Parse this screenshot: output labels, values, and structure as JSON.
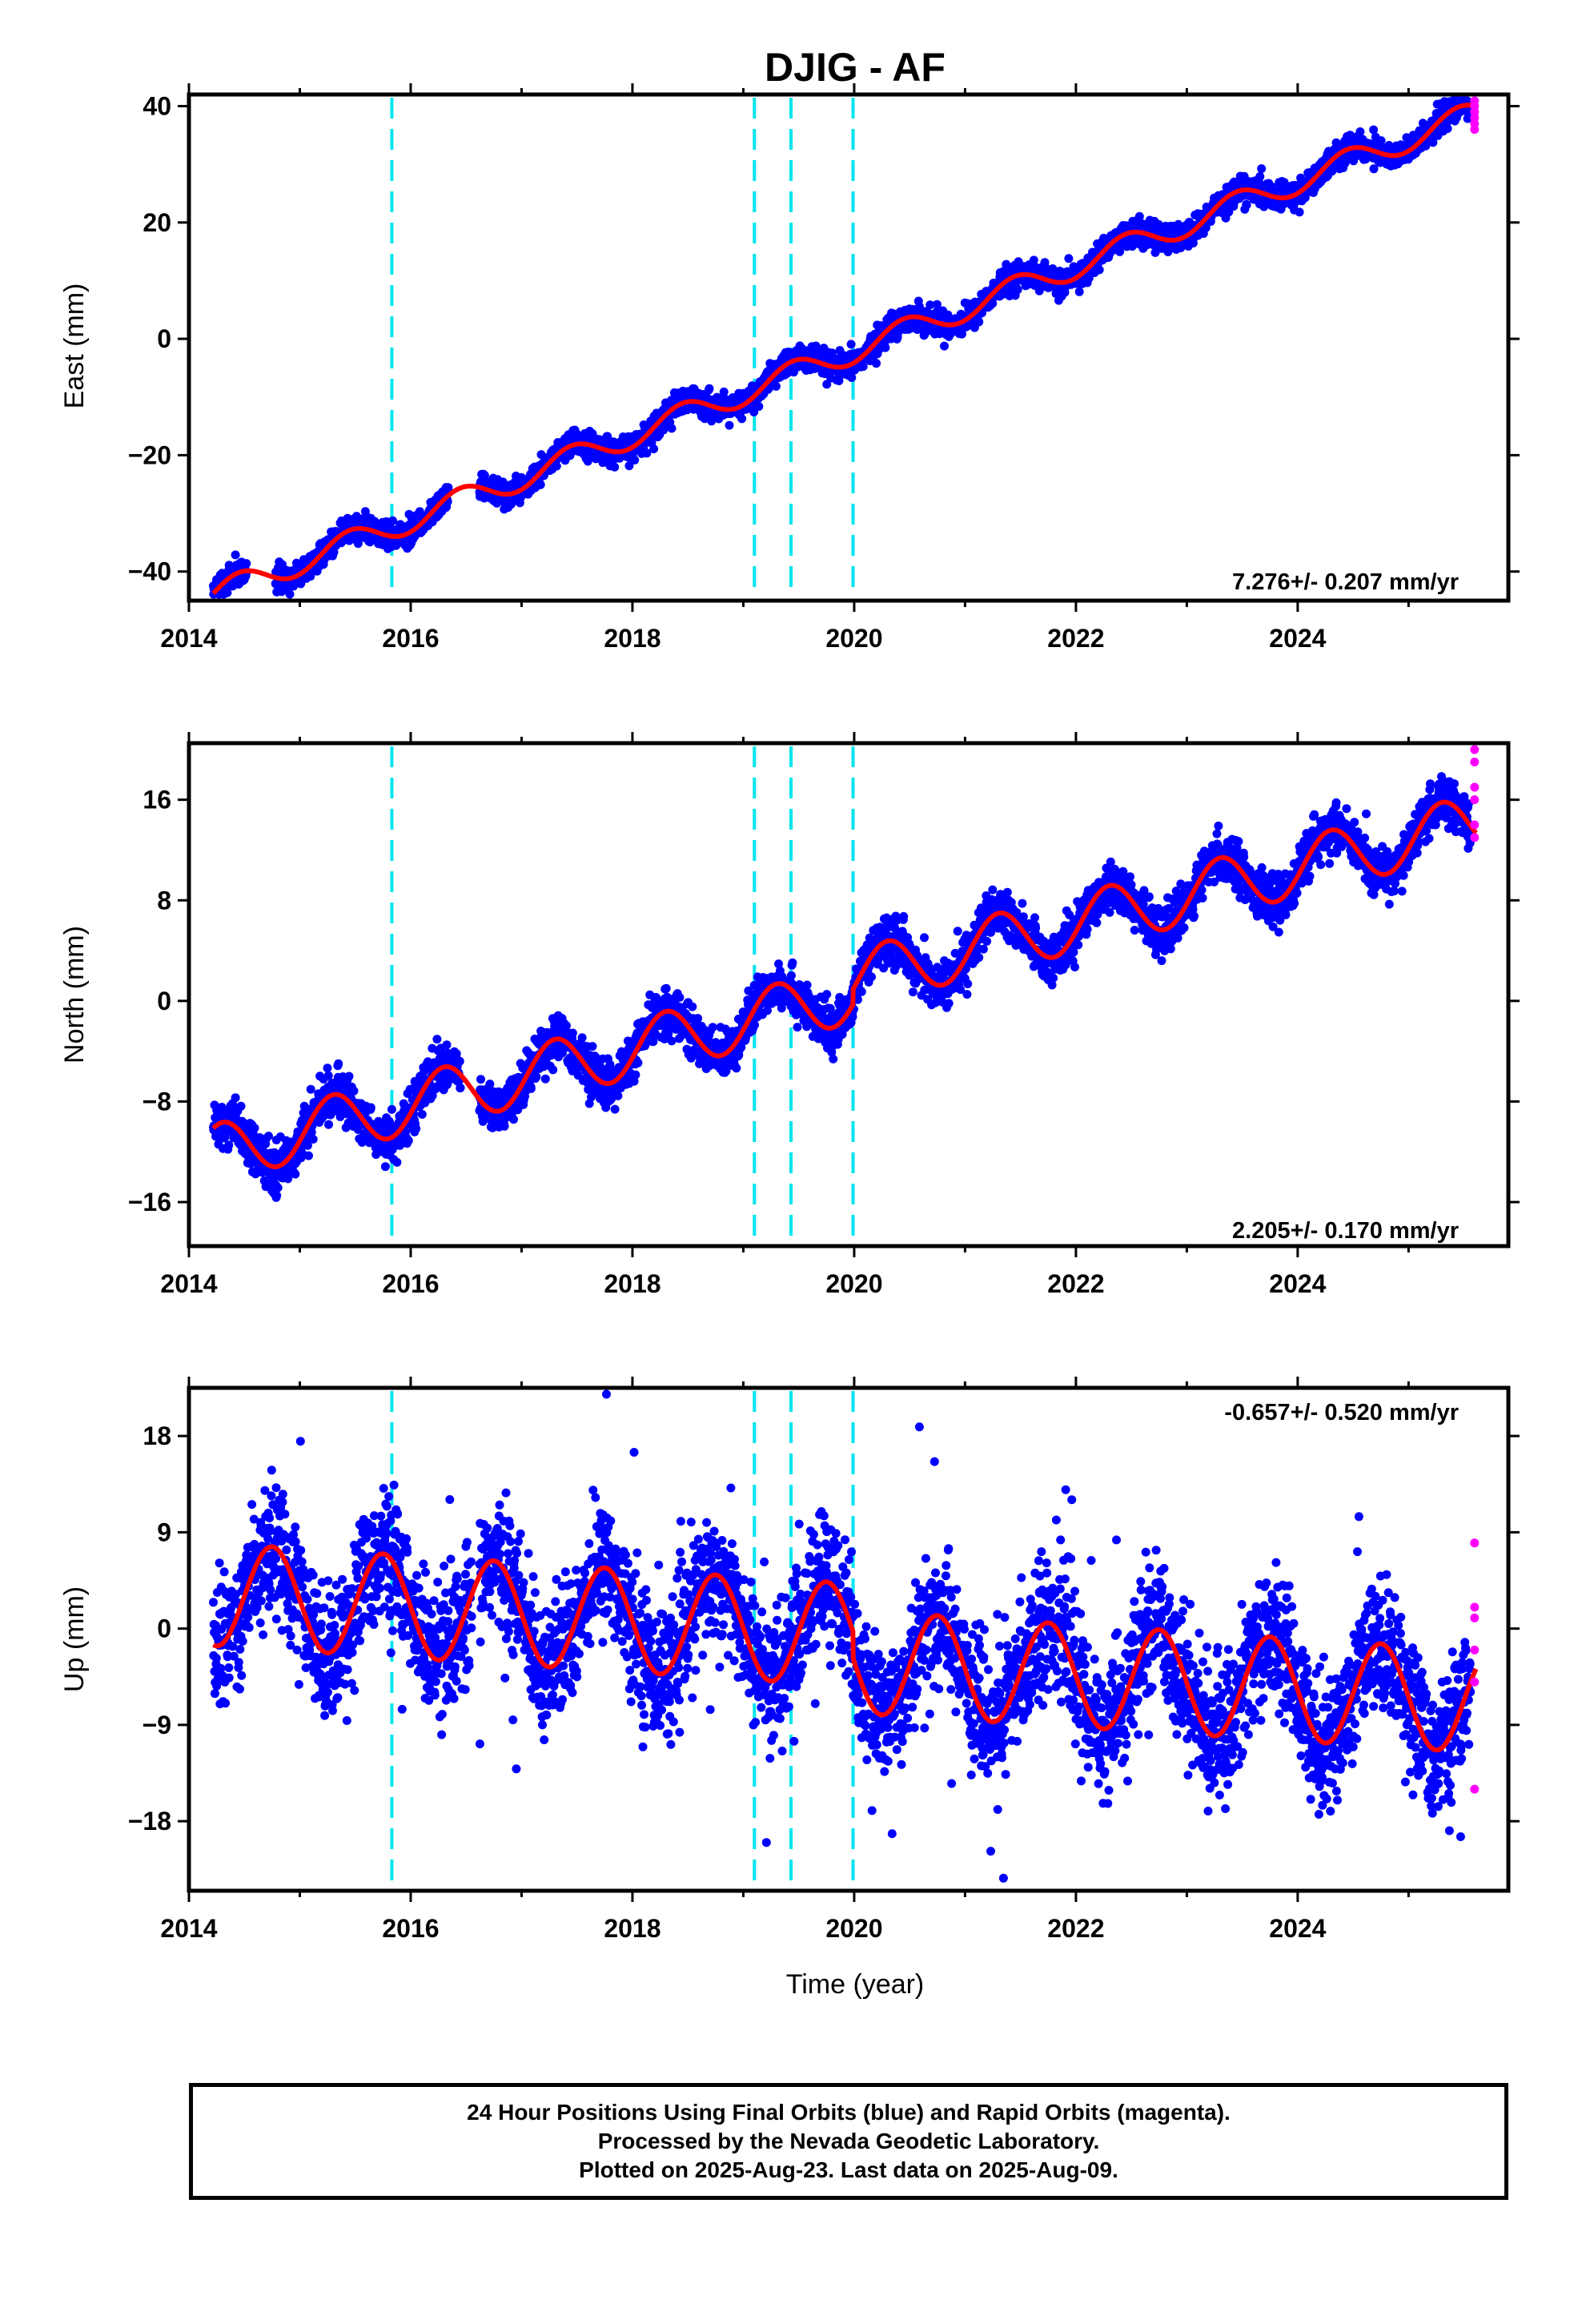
{
  "title": "DJIG - AF",
  "xlabel": "Time (year)",
  "footer": {
    "line1": "24 Hour Positions Using Final Orbits (blue) and Rapid Orbits (magenta).",
    "line2": "Processed by the Nevada Geodetic Laboratory.",
    "line3": "Plotted on 2025-Aug-23. Last data on 2025-Aug-09."
  },
  "colors": {
    "final_points": "#0000ff",
    "rapid_points": "#ff00ff",
    "model_fit": "#ff0000",
    "event_lines": "#00e5ee",
    "frame": "#000000"
  },
  "event_years": [
    2015.83,
    2019.1,
    2019.43,
    2019.99
  ],
  "chart_data": [
    {
      "type": "scatter",
      "component": "east",
      "ylabel": "East (mm)",
      "rate_text": "7.276+/- 0.207 mm/yr",
      "xlim": [
        2014.0,
        2025.9
      ],
      "ylim": [
        -45,
        42
      ],
      "xticks": [
        2014,
        2016,
        2018,
        2020,
        2022,
        2024
      ],
      "yticks": [
        40,
        20,
        0,
        -20,
        -40
      ],
      "ytick_labels": [
        "40",
        "20",
        "0",
        "−20",
        "−40"
      ],
      "data_start": 2014.22,
      "data_end": 2025.61,
      "rapid_start": 2025.56,
      "gaps": [
        [
          2014.52,
          2014.78
        ],
        [
          2016.34,
          2016.62
        ]
      ],
      "trend": {
        "t0": 2020.0,
        "offset": -2.0,
        "rate": 7.276
      },
      "seasonal": {
        "amp": 2.2,
        "phase": 0.2
      },
      "noise_sd": 1.1,
      "outlier_rate": 0.0,
      "steps": [],
      "rapid_values": [
        41,
        40,
        38,
        37,
        36,
        39
      ]
    },
    {
      "type": "scatter",
      "component": "north",
      "ylabel": "North (mm)",
      "rate_text": "2.205+/- 0.170 mm/yr",
      "xlim": [
        2014.0,
        2025.9
      ],
      "ylim": [
        -19.5,
        20.5
      ],
      "xticks": [
        2014,
        2016,
        2018,
        2020,
        2022,
        2024
      ],
      "yticks": [
        16,
        8,
        0,
        -8,
        -16
      ],
      "ytick_labels": [
        "16",
        "8",
        "0",
        "−8",
        "−16"
      ],
      "data_start": 2014.22,
      "data_end": 2025.61,
      "rapid_start": 2025.56,
      "gaps": [
        [
          2016.45,
          2016.62
        ]
      ],
      "trend": {
        "t0": 2020.0,
        "offset": 0.6,
        "rate": 2.205
      },
      "seasonal": {
        "amp": 2.3,
        "phase": 0.05
      },
      "noise_sd": 0.9,
      "outlier_rate": 0.0,
      "steps": [
        {
          "year": 2019.99,
          "size": 1.2
        }
      ],
      "rapid_values": [
        20,
        19,
        17,
        16,
        14,
        13
      ]
    },
    {
      "type": "scatter",
      "component": "up",
      "ylabel": "Up (mm)",
      "rate_text": "-0.657+/- 0.520 mm/yr",
      "xlim": [
        2014.0,
        2025.9
      ],
      "ylim": [
        -24.5,
        22.5
      ],
      "xticks": [
        2014,
        2016,
        2018,
        2020,
        2022,
        2024
      ],
      "yticks": [
        18,
        9,
        0,
        -9,
        -18
      ],
      "ytick_labels": [
        "18",
        "9",
        "0",
        "−9",
        "−18"
      ],
      "data_start": 2014.22,
      "data_end": 2025.61,
      "rapid_start": 2025.56,
      "gaps": [
        [
          2016.55,
          2016.62
        ]
      ],
      "trend": {
        "t0": 2020.0,
        "offset": -0.6,
        "rate": -0.657
      },
      "seasonal": {
        "amp": 4.8,
        "phase": 0.5
      },
      "noise_sd": 3.0,
      "outlier_rate": 0.012,
      "steps": [
        {
          "year": 2019.99,
          "size": -2.5
        }
      ],
      "rapid_values": [
        8,
        2,
        1,
        -2,
        -5,
        -15
      ]
    }
  ]
}
